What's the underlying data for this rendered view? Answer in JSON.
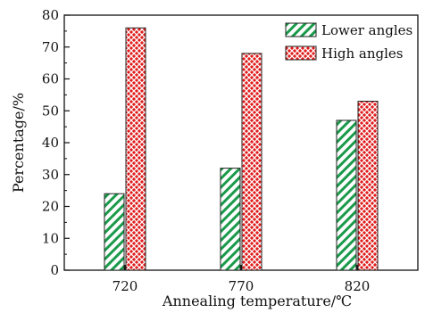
{
  "chart_data": {
    "type": "bar",
    "categories": [
      "720",
      "770",
      "820"
    ],
    "series": [
      {
        "name": "Lower angles",
        "values": [
          24,
          32,
          47
        ],
        "color": "#1a9a4a",
        "pattern": "diagonal-hatch"
      },
      {
        "name": "High angles",
        "values": [
          76,
          68,
          53
        ],
        "color": "#e01b1b",
        "pattern": "crosshatch"
      }
    ],
    "xlabel": "Annealing temperature/℃",
    "ylabel": "Percentage/%",
    "ylim": [
      0,
      80
    ],
    "yticks": [
      "0",
      "10",
      "20",
      "30",
      "40",
      "50",
      "60",
      "70",
      "80"
    ],
    "grid": false,
    "legend_position": "top-right"
  }
}
